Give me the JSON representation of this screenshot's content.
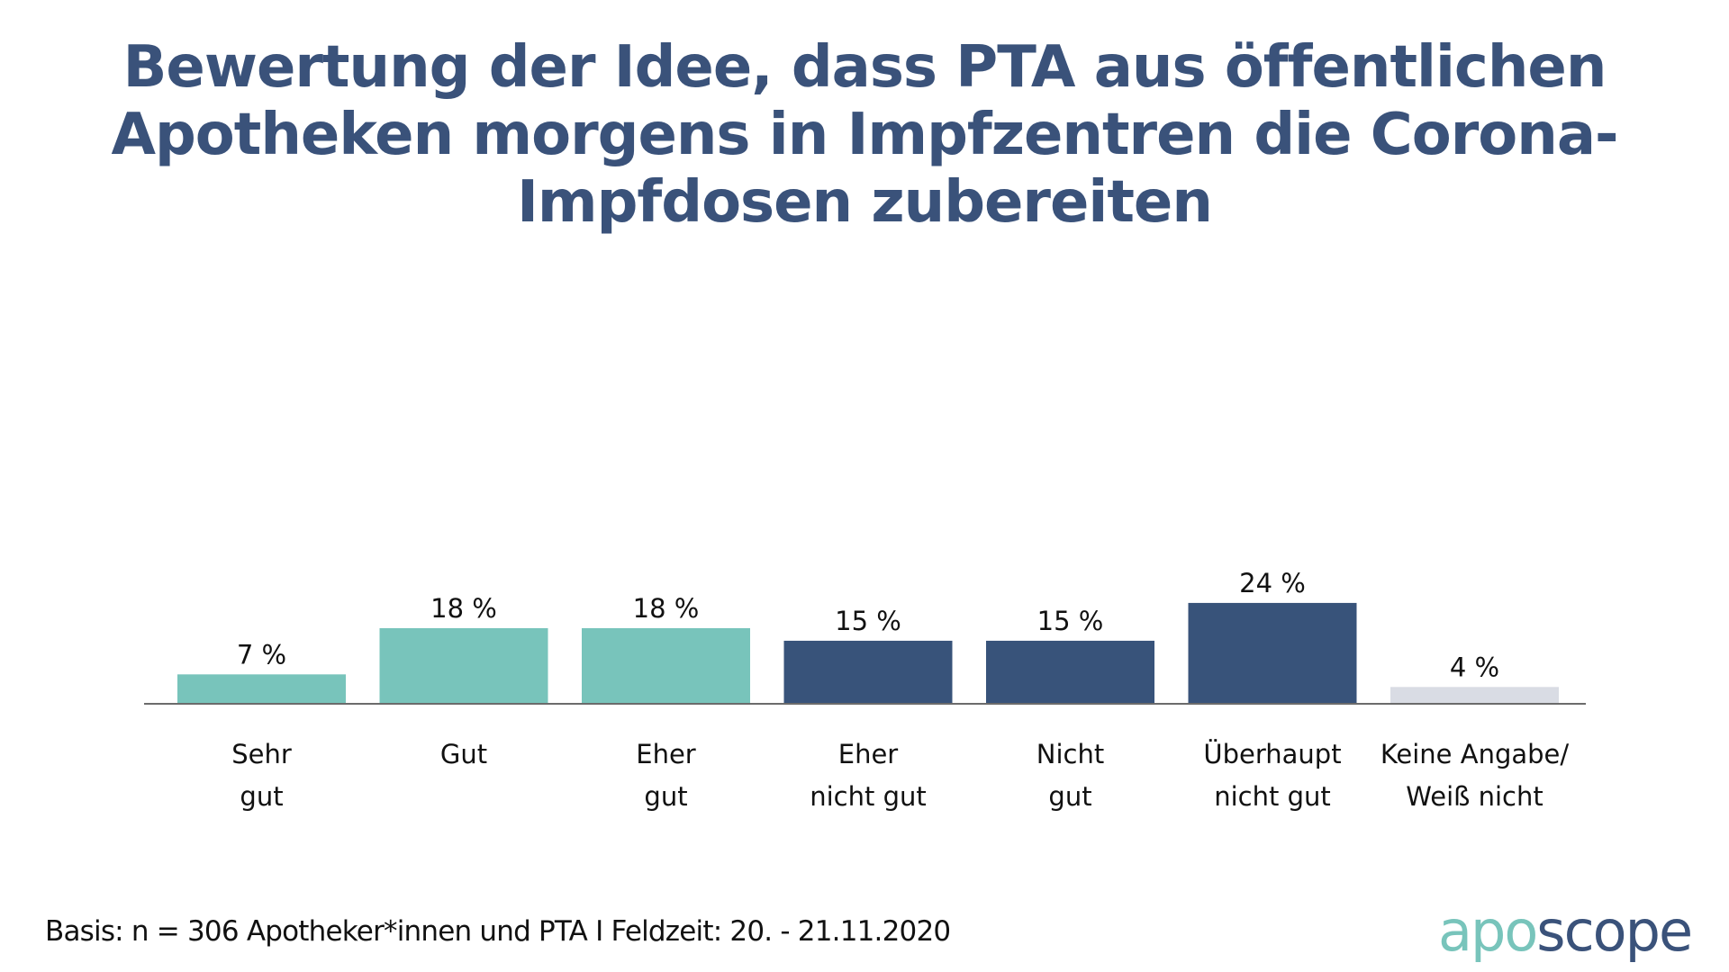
{
  "title_lines": [
    "Bewertung der Idee, dass PTA aus öffentlichen",
    "Apotheken morgens in Impfzentren die Corona-",
    "Impfdosen zubereiten"
  ],
  "footer": {
    "note": "Basis: n = 306 Apotheker*innen und PTA I Feldzeit: 20. - 21.11.2020",
    "logo_part1": "apo",
    "logo_part2": "scope"
  },
  "colors": {
    "positive": "#78c4bb",
    "negative": "#38537a",
    "neutral": "#d9dce4",
    "axis": "#6b6b6b",
    "title": "#3a527a"
  },
  "chart_data": {
    "type": "bar",
    "title": "Bewertung der Idee, dass PTA aus öffentlichen Apotheken morgens in Impfzentren die Corona-Impfdosen zubereiten",
    "xlabel": "",
    "ylabel": "",
    "ylim": [
      0,
      30
    ],
    "grid": false,
    "categories": [
      [
        "Sehr",
        "gut"
      ],
      [
        "Gut"
      ],
      [
        "Eher",
        "gut"
      ],
      [
        "Eher",
        "nicht gut"
      ],
      [
        "Nicht",
        "gut"
      ],
      [
        "Überhaupt",
        "nicht gut"
      ],
      [
        "Keine Angabe/",
        "Weiß nicht"
      ]
    ],
    "values": [
      7,
      18,
      18,
      15,
      15,
      24,
      4
    ],
    "value_labels": [
      "7 %",
      "18 %",
      "18 %",
      "15 %",
      "15 %",
      "24 %",
      "4 %"
    ],
    "bar_color_groups": [
      "positive",
      "positive",
      "positive",
      "negative",
      "negative",
      "negative",
      "neutral"
    ]
  }
}
